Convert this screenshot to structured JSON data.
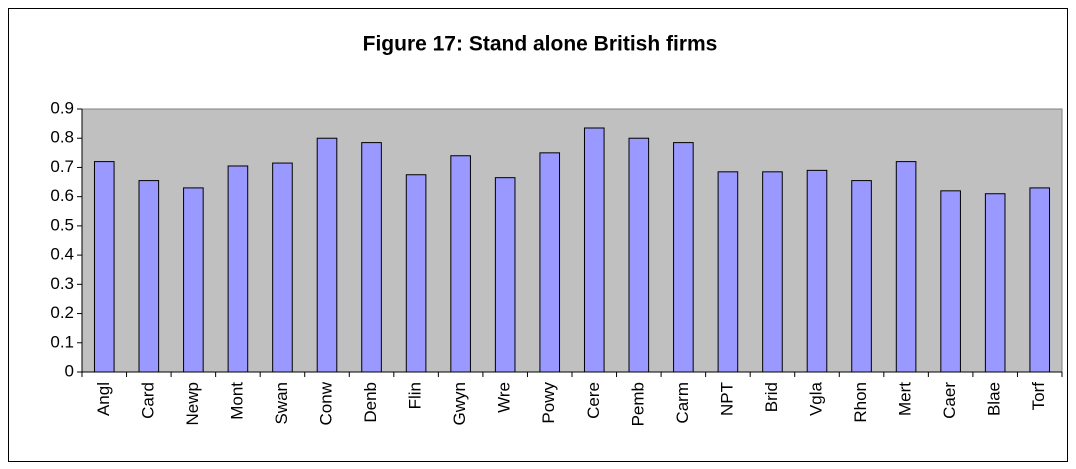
{
  "chart_data": {
    "type": "bar",
    "title": "Figure 17: Stand alone British firms",
    "categories": [
      "Angl",
      "Card",
      "Newp",
      "Mont",
      "Swan",
      "Conw",
      "Denb",
      "Flin",
      "Gwyn",
      "Wre",
      "Powy",
      "Cere",
      "Pemb",
      "Carm",
      "NPT",
      "Brid",
      "Vgla",
      "Rhon",
      "Mert",
      "Caer",
      "Blae",
      "Torf"
    ],
    "values": [
      0.72,
      0.655,
      0.63,
      0.705,
      0.715,
      0.8,
      0.785,
      0.675,
      0.74,
      0.665,
      0.75,
      0.835,
      0.8,
      0.785,
      0.685,
      0.685,
      0.69,
      0.655,
      0.72,
      0.62,
      0.61,
      0.63
    ],
    "color": "#9999ff",
    "ylim": [
      0,
      0.9
    ],
    "yticks": [
      0,
      0.1,
      0.2,
      0.3,
      0.4,
      0.5,
      0.6,
      0.7,
      0.8,
      0.9
    ],
    "grid": false
  }
}
